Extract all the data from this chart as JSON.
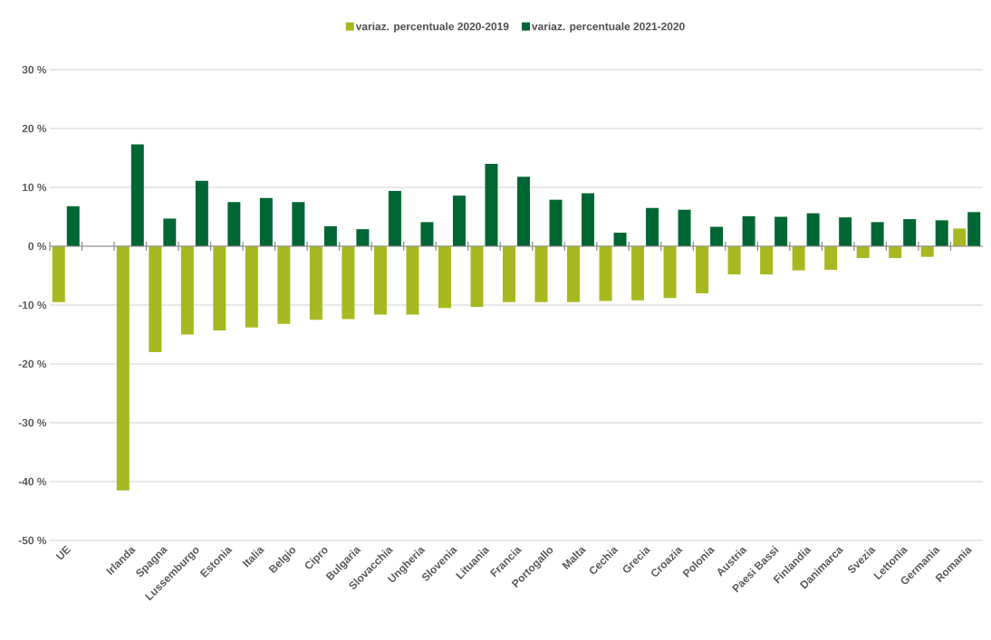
{
  "chart_data": {
    "type": "bar",
    "categories": [
      "UE",
      null,
      "Irlanda",
      "Spagna",
      "Lussemburgo",
      "Estonia",
      "Italia",
      "Belgio",
      "Cipro",
      "Bulgaria",
      "Slovacchia",
      "Ungheria",
      "Slovenia",
      "Lituania",
      "Francia",
      "Portogallo",
      "Malta",
      "Cechia",
      "Grecia",
      "Croazia",
      "Polonia",
      "Austria",
      "Paesi Bassi",
      "Finlandia",
      "Danimarca",
      "Svezia",
      "Lettonia",
      "Germania",
      "Romania"
    ],
    "series": [
      {
        "name": "variaz. percentuale 2020-2019",
        "color": "#a8b820",
        "values": [
          -9.5,
          null,
          -41.5,
          -18,
          -15,
          -14.3,
          -13.8,
          -13.2,
          -12.5,
          -12.4,
          -11.6,
          -11.6,
          -10.5,
          -10.3,
          -9.5,
          -9.5,
          -9.5,
          -9.3,
          -9.2,
          -8.8,
          -8,
          -4.8,
          -4.8,
          -4.1,
          -4,
          -2,
          -2,
          -1.8,
          3
        ]
      },
      {
        "name": "variaz. percentuale 2021-2020",
        "color": "#006633",
        "values": [
          6.8,
          null,
          17.3,
          4.7,
          11.1,
          7.5,
          8.2,
          7.5,
          3.4,
          2.9,
          9.4,
          4.1,
          8.6,
          14,
          11.8,
          7.9,
          9.0,
          2.3,
          6.5,
          6.2,
          3.3,
          5.1,
          5.0,
          5.6,
          4.9,
          4.1,
          4.6,
          4.4,
          5.8
        ]
      }
    ],
    "ylim": [
      -50,
      30
    ],
    "yticks": [
      {
        "value": -50,
        "label": "-50 %"
      },
      {
        "value": -40,
        "label": "-40 %"
      },
      {
        "value": -30,
        "label": "-30 %"
      },
      {
        "value": -20,
        "label": "-20 %"
      },
      {
        "value": -10,
        "label": "-10 %"
      },
      {
        "value": 0,
        "label": "0 %"
      },
      {
        "value": 10,
        "label": "10 %"
      },
      {
        "value": 20,
        "label": "20 %"
      },
      {
        "value": 30,
        "label": "30 %"
      }
    ],
    "grid": "y",
    "legend": "top"
  }
}
